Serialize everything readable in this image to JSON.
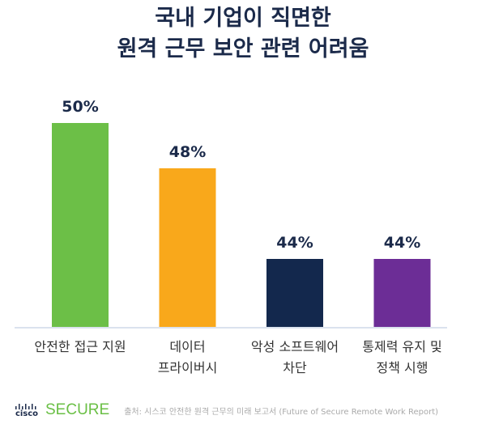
{
  "chart_data": {
    "type": "bar",
    "title": [
      "국내 기업이 직면한",
      "원격 근무 보안 관련 어려움"
    ],
    "categories": [
      [
        "안전한 접근 지원"
      ],
      [
        "데이터",
        "프라이버시"
      ],
      [
        "악성 소프트웨어",
        "차단"
      ],
      [
        "통제력 유지 및",
        "정책 시행"
      ]
    ],
    "values": [
      50,
      48,
      44,
      44
    ],
    "data_labels": [
      "50%",
      "48%",
      "44%",
      "44%"
    ],
    "colors": [
      "#6cbf47",
      "#f9a81b",
      "#13284d",
      "#6c2d96"
    ],
    "ylim": [
      41,
      51
    ],
    "grid": false
  },
  "footer": {
    "brand": "cisco",
    "product": "SECURE",
    "source": "출처: 시스코 안전한 원격 근무의 미래 보고서 (Future of Secure Remote Work Report)"
  }
}
